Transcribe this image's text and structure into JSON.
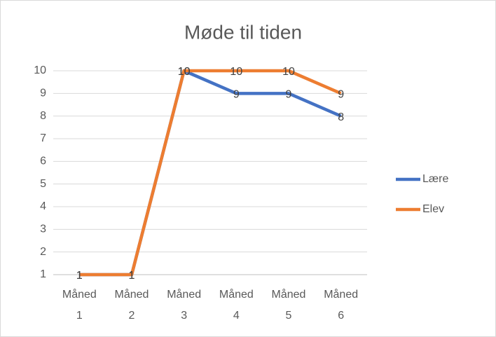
{
  "chart_data": {
    "type": "line",
    "title": "Møde til tiden",
    "categories": [
      "Måned 1",
      "Måned 2",
      "Måned 3",
      "Måned 4",
      "Måned 5",
      "Måned 6"
    ],
    "series": [
      {
        "name": "Lære",
        "color": "#4472c4",
        "values": [
          1,
          1,
          10,
          9,
          9,
          8
        ]
      },
      {
        "name": "Elev",
        "color": "#ed7d31",
        "values": [
          1,
          1,
          10,
          10,
          10,
          9
        ]
      }
    ],
    "ylim": [
      1,
      10
    ],
    "yticks": [
      1,
      2,
      3,
      4,
      5,
      6,
      7,
      8,
      9,
      10
    ],
    "grid": true,
    "legend": "right",
    "data_labels": true
  }
}
